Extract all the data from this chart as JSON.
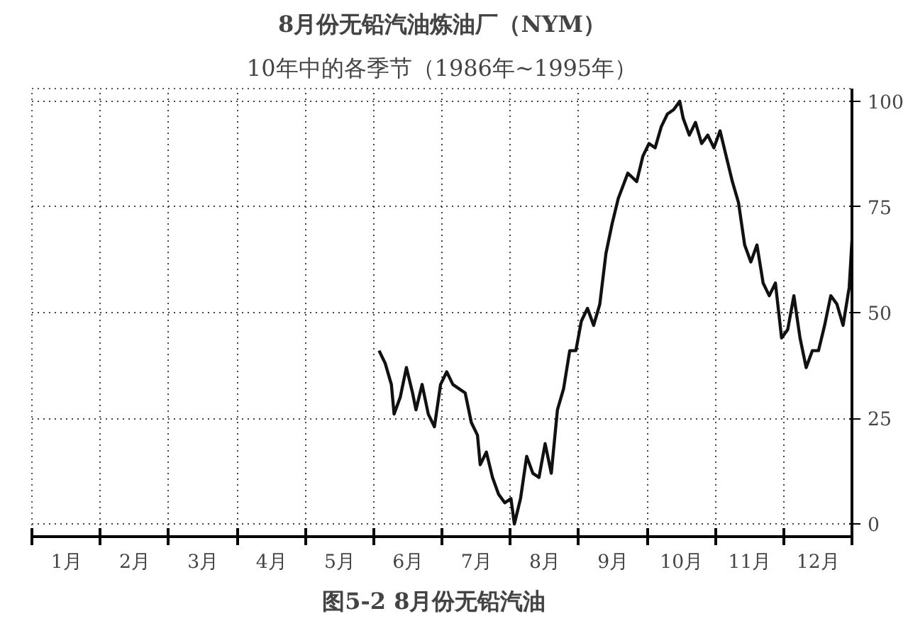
{
  "chart_data": {
    "type": "line",
    "title": "8月份无铅汽油炼油厂（NYM）",
    "subtitle": "10年中的各季节（1986年~1995年）",
    "annotations": [
      "图5-2   8月份无铅汽油"
    ],
    "x": [
      5.08,
      5.17,
      5.26,
      5.3,
      5.39,
      5.48,
      5.57,
      5.62,
      5.71,
      5.8,
      5.89,
      5.98,
      6.07,
      6.16,
      6.25,
      6.34,
      6.43,
      6.52,
      6.56,
      6.65,
      6.74,
      6.83,
      6.92,
      7.01,
      7.06,
      7.15,
      7.24,
      7.33,
      7.42,
      7.51,
      7.6,
      7.69,
      7.78,
      7.87,
      7.96,
      8.04,
      8.13,
      8.22,
      8.31,
      8.4,
      8.49,
      8.58,
      8.72,
      8.85,
      8.94,
      9.03,
      9.12,
      9.21,
      9.3,
      9.39,
      9.48,
      9.53,
      9.62,
      9.71,
      9.8,
      9.89,
      9.98,
      10.07,
      10.16,
      10.25,
      10.34,
      10.43,
      10.52,
      10.61,
      10.7,
      10.79,
      10.88,
      10.97,
      11.06,
      11.15,
      11.24,
      11.33,
      11.42,
      11.51,
      11.6,
      11.69,
      11.78,
      11.87,
      11.96,
      12.0
    ],
    "series": [
      {
        "color": "#111111",
        "values": [
          41,
          38,
          33,
          26,
          30,
          37,
          31,
          27,
          33,
          26,
          23,
          33,
          36,
          33,
          32,
          31,
          24,
          21,
          14,
          17,
          11,
          7,
          5,
          6,
          0,
          6,
          16,
          12,
          11,
          19,
          12,
          27,
          32,
          41,
          41,
          48,
          51,
          47,
          52,
          64,
          71,
          77,
          83,
          81,
          87,
          90,
          89,
          94,
          97,
          98,
          100,
          96,
          92,
          95,
          90,
          92,
          89,
          93,
          87,
          81,
          76,
          66,
          62,
          66,
          57,
          54,
          57,
          44,
          46,
          54,
          44,
          37,
          41,
          41,
          47,
          54,
          52,
          47,
          56,
          67
        ]
      }
    ],
    "xlim": [
      0,
      12
    ],
    "ylim": [
      -3,
      103
    ],
    "xticks": [
      {
        "value": 0,
        "label": null
      },
      {
        "value": 1,
        "label": null
      },
      {
        "value": 2,
        "label": null
      },
      {
        "value": 3,
        "label": null
      },
      {
        "value": 4,
        "label": null
      },
      {
        "value": 5,
        "label": null
      },
      {
        "value": 6,
        "label": null
      },
      {
        "value": 7,
        "label": null
      },
      {
        "value": 8,
        "label": null
      },
      {
        "value": 9,
        "label": null
      },
      {
        "value": 10,
        "label": null
      },
      {
        "value": 11,
        "label": null
      },
      {
        "value": 12,
        "label": null
      },
      {
        "value": 0.5,
        "label": "1月"
      },
      {
        "value": 1.5,
        "label": "2月"
      },
      {
        "value": 2.5,
        "label": "3月"
      },
      {
        "value": 3.5,
        "label": "4月"
      },
      {
        "value": 4.5,
        "label": "5月"
      },
      {
        "value": 5.5,
        "label": "6月"
      },
      {
        "value": 6.5,
        "label": "7月"
      },
      {
        "value": 7.5,
        "label": "8月"
      },
      {
        "value": 8.5,
        "label": "9月"
      },
      {
        "value": 9.5,
        "label": "10月"
      },
      {
        "value": 10.5,
        "label": "11月"
      },
      {
        "value": 11.5,
        "label": "12月"
      }
    ],
    "yticks": [
      0,
      25,
      50,
      75,
      100
    ],
    "grid": true,
    "line_style": "solid",
    "marker": "none"
  }
}
